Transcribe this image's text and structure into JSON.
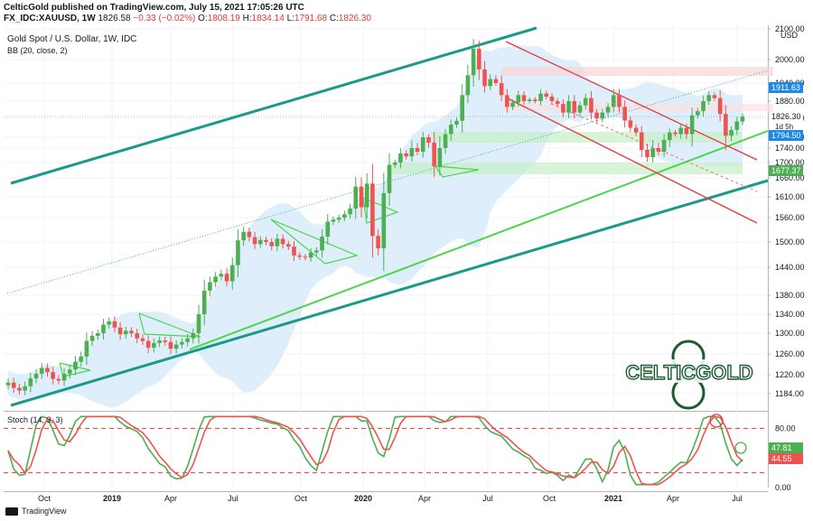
{
  "header": {
    "line1": "CelticGold published on TradingView.com, July 15, 2021 17:05:26 UTC",
    "symbol": "FX_IDC:XAUUSD, 1W",
    "price": "1826.58",
    "change": "−0.33 (−0.02%)",
    "o_label": "O:",
    "o": "1808.19",
    "h_label": "H:",
    "h": "1834.14",
    "l_label": "L:",
    "l": "1791.68",
    "c_label": "C:",
    "c": "1826.30"
  },
  "chart_titles": {
    "main": "Gold Spot / U.S. Dollar, 1W, IDC",
    "bb": "BB (20, close, 2)",
    "stoch": "Stoch (14, 3, 3)",
    "currency": "USD"
  },
  "brand": {
    "watermark": "CELTICGOLD",
    "footer": "TradingView"
  },
  "colors": {
    "up": "#4caf50",
    "down": "#ef5350",
    "channel": "#1b9a8a",
    "support": "#4cd44c",
    "bb_fill": "#d3e9f9",
    "stoch_k": "#4caf50",
    "stoch_d": "#ef5350"
  },
  "chart_data": [
    {
      "type": "candlestick",
      "title": "Gold Spot / U.S. Dollar, 1W, IDC",
      "y_axis_ticks": [
        2100,
        2000,
        1940,
        1880,
        1820,
        1760,
        1740,
        1700,
        1660,
        1610,
        1560,
        1500,
        1440,
        1380,
        1340,
        1300,
        1260,
        1220,
        1184
      ],
      "y_range": [
        1150,
        2100
      ],
      "x_axis_ticks": [
        "Oct",
        "2019",
        "Apr",
        "Jul",
        "Oct",
        "2020",
        "Apr",
        "Jul",
        "Oct",
        "2021",
        "Apr",
        "Jul"
      ],
      "price_tags": [
        {
          "value": "1911.63",
          "color": "#1e88e5"
        },
        {
          "value": "1826.30",
          "color": "#131722"
        },
        {
          "value": "1d 5h",
          "color": "#131722"
        },
        {
          "value": "1794.50",
          "color": "#1e88e5"
        },
        {
          "value": "1677.37",
          "color": "#4caf50"
        }
      ],
      "closes": [
        1205,
        1195,
        1190,
        1198,
        1213,
        1222,
        1233,
        1225,
        1212,
        1209,
        1222,
        1230,
        1245,
        1255,
        1285,
        1295,
        1300,
        1318,
        1325,
        1312,
        1298,
        1305,
        1300,
        1290,
        1285,
        1272,
        1281,
        1286,
        1283,
        1270,
        1278,
        1283,
        1290,
        1300,
        1340,
        1390,
        1408,
        1420,
        1426,
        1410,
        1445,
        1504,
        1525,
        1512,
        1495,
        1505,
        1500,
        1490,
        1508,
        1495,
        1489,
        1468,
        1465,
        1463,
        1475,
        1480,
        1513,
        1550,
        1555,
        1560,
        1568,
        1582,
        1637,
        1585,
        1645,
        1515,
        1485,
        1620,
        1694,
        1700,
        1725,
        1717,
        1740,
        1730,
        1760,
        1750,
        1690,
        1740,
        1770,
        1800,
        1812,
        1900,
        1960,
        2035,
        1975,
        1930,
        1950,
        1940,
        1900,
        1860,
        1875,
        1900,
        1880,
        1885,
        1880,
        1905,
        1895,
        1880,
        1870,
        1840,
        1880,
        1840,
        1865,
        1890,
        1840,
        1820,
        1840,
        1860,
        1900,
        1860,
        1813,
        1790,
        1775,
        1735,
        1715,
        1740,
        1730,
        1755,
        1775,
        1770,
        1790,
        1770,
        1830,
        1845,
        1880,
        1900,
        1890,
        1835,
        1765,
        1783,
        1810,
        1826
      ],
      "bollinger": {
        "period": 20,
        "source": "close",
        "mult": 2
      }
    },
    {
      "type": "line",
      "title": "Stoch (14, 3, 3)",
      "y_range": [
        0,
        100
      ],
      "y_axis_ticks": [
        80,
        40,
        0
      ],
      "levels": [
        80,
        20
      ],
      "series": [
        {
          "name": "%K",
          "last": "47.81",
          "color": "#4caf50"
        },
        {
          "name": "%D",
          "last": "44.55",
          "color": "#ef5350"
        }
      ]
    }
  ]
}
